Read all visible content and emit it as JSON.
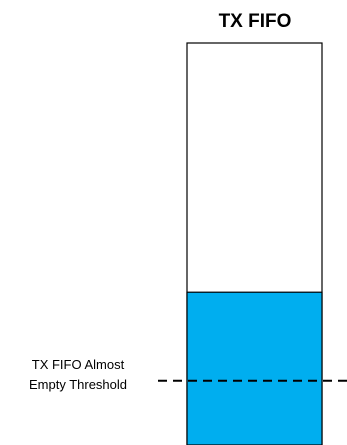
{
  "diagram": {
    "title": "TX FIFO",
    "threshold_label": [
      "TX FIFO Almost",
      "Empty Threshold"
    ],
    "fill_fraction": 0.38,
    "threshold_fraction": 0.16,
    "colors": {
      "fill": "#00aeef",
      "outline": "#000000",
      "background": "#ffffff"
    }
  }
}
